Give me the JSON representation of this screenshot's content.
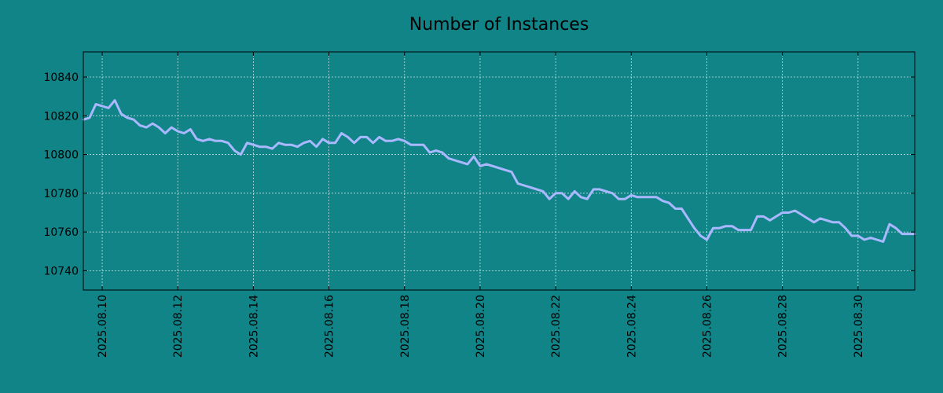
{
  "chart_data": {
    "type": "line",
    "title": "Number of Instances",
    "xlabel": "",
    "ylabel": "",
    "background_color": "#108487",
    "line_color": "#a9b8ff",
    "grid": true,
    "legend": "none",
    "xlim": [
      "2025.08.09 12:00",
      "2025.08.31 12:00"
    ],
    "ylim": [
      10730,
      10853
    ],
    "x_ticks": [
      "2025.08.10",
      "2025.08.12",
      "2025.08.14",
      "2025.08.16",
      "2025.08.18",
      "2025.08.20",
      "2025.08.22",
      "2025.08.24",
      "2025.08.26",
      "2025.08.28",
      "2025.08.30"
    ],
    "y_ticks": [
      10740,
      10760,
      10780,
      10800,
      10820,
      10840
    ],
    "series": [
      {
        "x": [
          "2025.08.09 12:00",
          "2025.08.09 16:00",
          "2025.08.09 20:00",
          "2025.08.10 00:00",
          "2025.08.10 04:00",
          "2025.08.10 08:00",
          "2025.08.10 12:00",
          "2025.08.10 16:00",
          "2025.08.10 20:00",
          "2025.08.11 00:00",
          "2025.08.11 04:00",
          "2025.08.11 08:00",
          "2025.08.11 12:00",
          "2025.08.11 16:00",
          "2025.08.11 20:00",
          "2025.08.12 00:00",
          "2025.08.12 04:00",
          "2025.08.12 08:00",
          "2025.08.12 12:00",
          "2025.08.12 16:00",
          "2025.08.12 20:00",
          "2025.08.13 00:00",
          "2025.08.13 04:00",
          "2025.08.13 08:00",
          "2025.08.13 12:00",
          "2025.08.13 16:00",
          "2025.08.13 20:00",
          "2025.08.14 00:00",
          "2025.08.14 04:00",
          "2025.08.14 08:00",
          "2025.08.14 12:00",
          "2025.08.14 16:00",
          "2025.08.14 20:00",
          "2025.08.15 00:00",
          "2025.08.15 04:00",
          "2025.08.15 08:00",
          "2025.08.15 12:00",
          "2025.08.15 16:00",
          "2025.08.15 20:00",
          "2025.08.16 00:00",
          "2025.08.16 04:00",
          "2025.08.16 08:00",
          "2025.08.16 12:00",
          "2025.08.16 16:00",
          "2025.08.16 20:00",
          "2025.08.17 00:00",
          "2025.08.17 04:00",
          "2025.08.17 08:00",
          "2025.08.17 12:00",
          "2025.08.17 16:00",
          "2025.08.17 20:00",
          "2025.08.18 00:00",
          "2025.08.18 04:00",
          "2025.08.18 08:00",
          "2025.08.18 12:00",
          "2025.08.18 16:00",
          "2025.08.18 20:00",
          "2025.08.19 00:00",
          "2025.08.19 04:00",
          "2025.08.19 08:00",
          "2025.08.19 12:00",
          "2025.08.19 16:00",
          "2025.08.19 20:00",
          "2025.08.20 00:00",
          "2025.08.20 04:00",
          "2025.08.20 08:00",
          "2025.08.20 12:00",
          "2025.08.20 16:00",
          "2025.08.20 20:00",
          "2025.08.21 00:00",
          "2025.08.21 04:00",
          "2025.08.21 08:00",
          "2025.08.21 12:00",
          "2025.08.21 16:00",
          "2025.08.21 20:00",
          "2025.08.22 00:00",
          "2025.08.22 04:00",
          "2025.08.22 08:00",
          "2025.08.22 12:00",
          "2025.08.22 16:00",
          "2025.08.22 20:00",
          "2025.08.23 00:00",
          "2025.08.23 04:00",
          "2025.08.23 08:00",
          "2025.08.23 12:00",
          "2025.08.23 16:00",
          "2025.08.23 20:00",
          "2025.08.24 00:00",
          "2025.08.24 04:00",
          "2025.08.24 08:00",
          "2025.08.24 12:00",
          "2025.08.24 16:00",
          "2025.08.24 20:00",
          "2025.08.25 00:00",
          "2025.08.25 04:00",
          "2025.08.25 08:00",
          "2025.08.25 12:00",
          "2025.08.25 16:00",
          "2025.08.25 20:00",
          "2025.08.26 00:00",
          "2025.08.26 04:00",
          "2025.08.26 08:00",
          "2025.08.26 12:00",
          "2025.08.26 16:00",
          "2025.08.26 20:00",
          "2025.08.27 00:00",
          "2025.08.27 04:00",
          "2025.08.27 08:00",
          "2025.08.27 12:00",
          "2025.08.27 16:00",
          "2025.08.27 20:00",
          "2025.08.28 00:00",
          "2025.08.28 04:00",
          "2025.08.28 08:00",
          "2025.08.28 12:00",
          "2025.08.28 16:00",
          "2025.08.28 20:00",
          "2025.08.29 00:00",
          "2025.08.29 04:00",
          "2025.08.29 08:00",
          "2025.08.29 12:00",
          "2025.08.29 16:00",
          "2025.08.29 20:00",
          "2025.08.30 00:00",
          "2025.08.30 04:00",
          "2025.08.30 08:00",
          "2025.08.30 12:00",
          "2025.08.30 16:00",
          "2025.08.30 20:00",
          "2025.08.31 00:00",
          "2025.08.31 04:00",
          "2025.08.31 08:00",
          "2025.08.31 12:00"
        ],
        "y": [
          10818,
          10819,
          10826,
          10825,
          10824,
          10828,
          10821,
          10819,
          10818,
          10815,
          10814,
          10816,
          10814,
          10811,
          10814,
          10812,
          10811,
          10813,
          10808,
          10807,
          10808,
          10807,
          10807,
          10806,
          10802,
          10800,
          10806,
          10805,
          10804,
          10804,
          10803,
          10806,
          10805,
          10805,
          10804,
          10806,
          10807,
          10804,
          10808,
          10806,
          10806,
          10811,
          10809,
          10806,
          10809,
          10809,
          10806,
          10809,
          10807,
          10807,
          10808,
          10807,
          10805,
          10805,
          10805,
          10801,
          10802,
          10801,
          10798,
          10797,
          10796,
          10795,
          10799,
          10794,
          10795,
          10794,
          10793,
          10792,
          10791,
          10785,
          10784,
          10783,
          10782,
          10781,
          10777,
          10780,
          10780,
          10777,
          10781,
          10778,
          10777,
          10782,
          10782,
          10781,
          10780,
          10777,
          10777,
          10779,
          10778,
          10778,
          10778,
          10778,
          10776,
          10775,
          10772,
          10772,
          10767,
          10762,
          10758,
          10756,
          10762,
          10762,
          10763,
          10763,
          10761,
          10761,
          10761,
          10768,
          10768,
          10766,
          10768,
          10770,
          10770,
          10771,
          10769,
          10767,
          10765,
          10767,
          10766,
          10765,
          10765,
          10762,
          10758,
          10758,
          10756,
          10757,
          10756,
          10755,
          10764,
          10762,
          10759,
          10759,
          10759
        ]
      }
    ]
  }
}
